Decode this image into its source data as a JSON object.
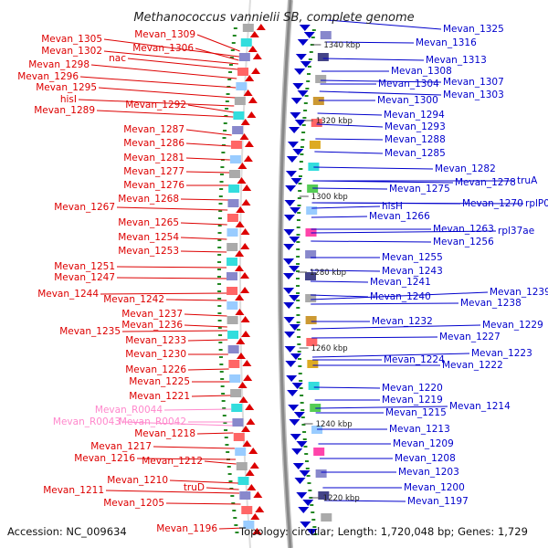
{
  "title": "Methanococcus vannielii SB, complete genome",
  "accession": "Accession: NC_009634",
  "summary": "Topology: circular; Length: 1,720,048 bp; Genes: 1,729",
  "colors": {
    "left_gene": "#dd0000",
    "right_gene": "#0000cc",
    "rna_gene": "#ff88cc",
    "backbone": "#888888",
    "minor_tick": "#228822"
  },
  "scale_ticks": [
    "1340 kbp",
    "1320 kbp",
    "1300 kbp",
    "1280 kbp",
    "1260 kbp",
    "1240 kbp",
    "1220 kbp"
  ],
  "left_labels": [
    {
      "text": "Mevan_1309",
      "kind": "gene"
    },
    {
      "text": "Mevan_1305",
      "kind": "gene"
    },
    {
      "text": "Mevan_1306",
      "kind": "gene"
    },
    {
      "text": "Mevan_1302",
      "kind": "gene"
    },
    {
      "text": "nac",
      "kind": "gene"
    },
    {
      "text": "Mevan_1298",
      "kind": "gene"
    },
    {
      "text": "Mevan_1296",
      "kind": "gene"
    },
    {
      "text": "Mevan_1295",
      "kind": "gene"
    },
    {
      "text": "hisI",
      "kind": "gene"
    },
    {
      "text": "Mevan_1292",
      "kind": "gene"
    },
    {
      "text": "Mevan_1289",
      "kind": "gene"
    },
    {
      "text": "Mevan_1287",
      "kind": "gene"
    },
    {
      "text": "Mevan_1286",
      "kind": "gene"
    },
    {
      "text": "Mevan_1281",
      "kind": "gene"
    },
    {
      "text": "Mevan_1277",
      "kind": "gene"
    },
    {
      "text": "Mevan_1276",
      "kind": "gene"
    },
    {
      "text": "Mevan_1268",
      "kind": "gene"
    },
    {
      "text": "Mevan_1267",
      "kind": "gene"
    },
    {
      "text": "Mevan_1265",
      "kind": "gene"
    },
    {
      "text": "Mevan_1254",
      "kind": "gene"
    },
    {
      "text": "Mevan_1253",
      "kind": "gene"
    },
    {
      "text": "Mevan_1251",
      "kind": "gene"
    },
    {
      "text": "Mevan_1247",
      "kind": "gene"
    },
    {
      "text": "Mevan_1244",
      "kind": "gene"
    },
    {
      "text": "Mevan_1242",
      "kind": "gene"
    },
    {
      "text": "Mevan_1237",
      "kind": "gene"
    },
    {
      "text": "Mevan_1236",
      "kind": "gene"
    },
    {
      "text": "Mevan_1235",
      "kind": "gene"
    },
    {
      "text": "Mevan_1233",
      "kind": "gene"
    },
    {
      "text": "Mevan_1230",
      "kind": "gene"
    },
    {
      "text": "Mevan_1226",
      "kind": "gene"
    },
    {
      "text": "Mevan_1225",
      "kind": "gene"
    },
    {
      "text": "Mevan_1221",
      "kind": "gene"
    },
    {
      "text": "Mevan_R0044",
      "kind": "rna"
    },
    {
      "text": "Mevan_R0043",
      "kind": "rna"
    },
    {
      "text": "Mevan_R0042",
      "kind": "rna"
    },
    {
      "text": "Mevan_1218",
      "kind": "gene"
    },
    {
      "text": "Mevan_1217",
      "kind": "gene"
    },
    {
      "text": "Mevan_1216",
      "kind": "gene"
    },
    {
      "text": "Mevan_1212",
      "kind": "gene"
    },
    {
      "text": "Mevan_1210",
      "kind": "gene"
    },
    {
      "text": "truD",
      "kind": "gene"
    },
    {
      "text": "Mevan_1211",
      "kind": "gene"
    },
    {
      "text": "Mevan_1205",
      "kind": "gene"
    },
    {
      "text": "Mevan_1196",
      "kind": "gene"
    }
  ],
  "right_labels": [
    {
      "text": "Mevan_1325"
    },
    {
      "text": "Mevan_1316"
    },
    {
      "text": "Mevan_1313"
    },
    {
      "text": "Mevan_1308"
    },
    {
      "text": "Mevan_1304"
    },
    {
      "text": "Mevan_1307"
    },
    {
      "text": "Mevan_1303"
    },
    {
      "text": "Mevan_1300"
    },
    {
      "text": "Mevan_1294"
    },
    {
      "text": "Mevan_1293"
    },
    {
      "text": "Mevan_1288"
    },
    {
      "text": "Mevan_1285"
    },
    {
      "text": "Mevan_1282"
    },
    {
      "text": "Mevan_1278"
    },
    {
      "text": "truA"
    },
    {
      "text": "Mevan_1275"
    },
    {
      "text": "Mevan_1270"
    },
    {
      "text": "hisH"
    },
    {
      "text": "rplP0"
    },
    {
      "text": "Mevan_1266"
    },
    {
      "text": "Mevan_1263"
    },
    {
      "text": "rpl37ae"
    },
    {
      "text": "Mevan_1256"
    },
    {
      "text": "Mevan_1255"
    },
    {
      "text": "Mevan_1243"
    },
    {
      "text": "Mevan_1241"
    },
    {
      "text": "Mevan_1240"
    },
    {
      "text": "Mevan_1239"
    },
    {
      "text": "Mevan_1238"
    },
    {
      "text": "Mevan_1232"
    },
    {
      "text": "Mevan_1229"
    },
    {
      "text": "Mevan_1227"
    },
    {
      "text": "Mevan_1224"
    },
    {
      "text": "Mevan_1223"
    },
    {
      "text": "Mevan_1222"
    },
    {
      "text": "Mevan_1220"
    },
    {
      "text": "Mevan_1219"
    },
    {
      "text": "Mevan_1214"
    },
    {
      "text": "Mevan_1215"
    },
    {
      "text": "Mevan_1213"
    },
    {
      "text": "Mevan_1209"
    },
    {
      "text": "Mevan_1208"
    },
    {
      "text": "Mevan_1203"
    },
    {
      "text": "Mevan_1200"
    },
    {
      "text": "Mevan_1197"
    }
  ]
}
